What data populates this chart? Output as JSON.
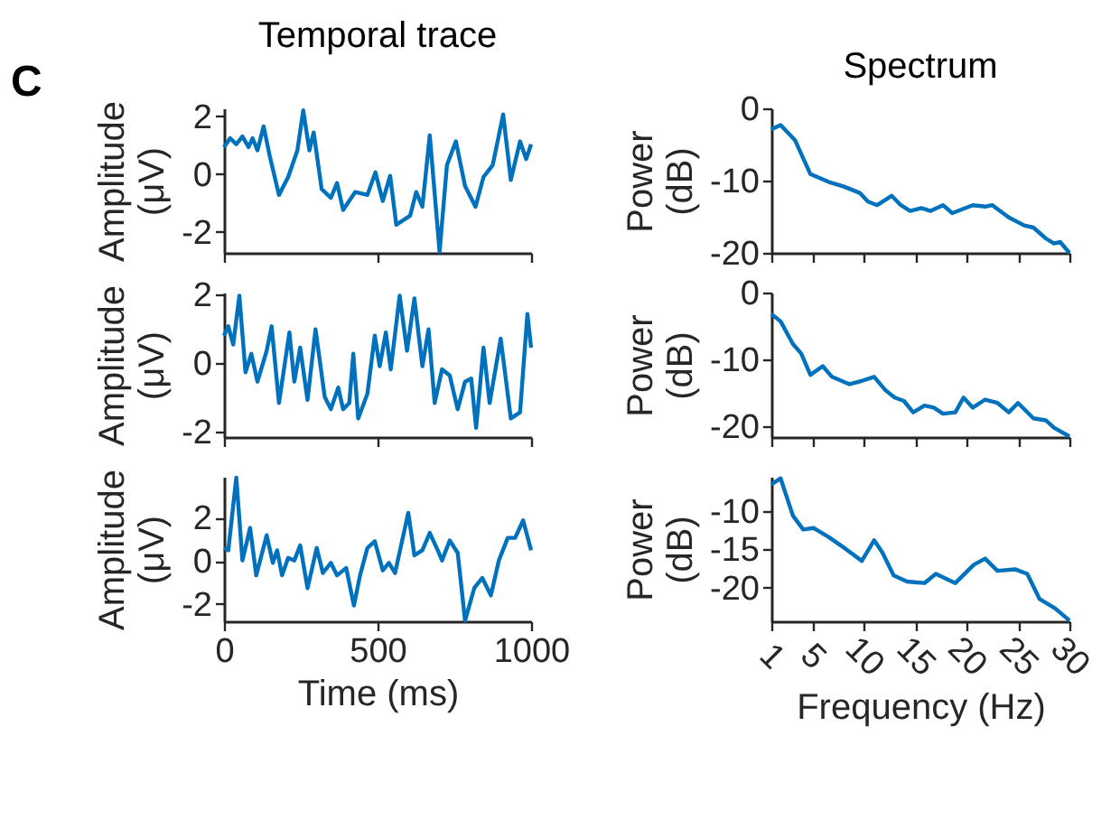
{
  "chart_data": [
    {
      "type": "line",
      "title": "Temporal trace",
      "ylabel": "Amplitude\n(μV)",
      "annotations": [
        "C"
      ],
      "xlim": [
        0,
        1000
      ],
      "xticks": [
        0,
        500,
        1000
      ],
      "ylim": [
        -2.72,
        2.27
      ],
      "yticks": [
        -2,
        0,
        2
      ],
      "tick_labels": "y",
      "grid": false,
      "x": [
        0,
        20,
        40,
        60,
        80,
        93,
        109,
        129,
        149,
        179,
        209,
        239,
        258,
        278,
        292,
        318,
        348,
        368,
        388,
        427,
        467,
        493,
        517,
        541,
        561,
        606,
        626,
        646,
        670,
        702,
        726,
        755,
        785,
        819,
        845,
        875,
        909,
        934,
        964,
        984,
        1000
      ],
      "series": [
        {
          "color": "#0072bd",
          "values": [
            0.93,
            1.24,
            1.03,
            1.3,
            0.93,
            1.24,
            0.82,
            1.65,
            0.62,
            -0.72,
            -0.1,
            0.82,
            2.2,
            0.82,
            1.44,
            -0.52,
            -0.82,
            -0.31,
            -1.24,
            -0.62,
            -0.72,
            0.06,
            -0.93,
            -0.06,
            -1.75,
            -1.44,
            -0.62,
            -1.13,
            1.34,
            -2.68,
            0.31,
            1.13,
            -0.41,
            -1.13,
            -0.1,
            0.31,
            2.06,
            -0.2,
            1.13,
            0.52,
            1.03
          ]
        }
      ]
    },
    {
      "type": "line",
      "title": "Spectrum",
      "ylabel": "Power\n(dB)",
      "xlim": [
        1,
        30
      ],
      "xticks": [
        1,
        5,
        10,
        15,
        20,
        25,
        30
      ],
      "ylim": [
        -20,
        0
      ],
      "yticks": [
        -20,
        -10,
        0
      ],
      "tick_labels": "y",
      "grid": false,
      "x": [
        1,
        1.9,
        3.3,
        4.8,
        6.6,
        8.0,
        9.6,
        10.4,
        11.3,
        12.7,
        13.6,
        14.5,
        15.6,
        16.5,
        17.7,
        18.6,
        20.6,
        21.8,
        22.5,
        24.1,
        25.6,
        26.5,
        27.7,
        28.5,
        29.1,
        30
      ],
      "series": [
        {
          "color": "#0072bd",
          "values": [
            -2.9,
            -2.3,
            -4.4,
            -9.1,
            -10.2,
            -10.8,
            -11.7,
            -12.9,
            -13.4,
            -12.1,
            -13.4,
            -14.2,
            -13.8,
            -14.2,
            -13.4,
            -14.5,
            -13.4,
            -13.6,
            -13.4,
            -15.1,
            -16.2,
            -16.5,
            -18.0,
            -18.7,
            -18.5,
            -20
          ]
        }
      ]
    },
    {
      "type": "line",
      "ylabel": "Amplitude\n(μV)",
      "xlim": [
        0,
        1000
      ],
      "xticks": [
        0,
        500,
        1000
      ],
      "ylim": [
        -2.15,
        2.05
      ],
      "yticks": [
        -2,
        0,
        2
      ],
      "tick_labels": "y",
      "grid": false,
      "x": [
        0,
        14,
        30,
        50,
        70,
        89,
        109,
        139,
        155,
        179,
        213,
        229,
        248,
        272,
        298,
        328,
        348,
        372,
        388,
        408,
        421,
        437,
        467,
        491,
        507,
        527,
        543,
        572,
        596,
        620,
        646,
        666,
        686,
        710,
        735,
        761,
        785,
        805,
        821,
        845,
        865,
        901,
        934,
        964,
        988,
        1000
      ],
      "series": [
        {
          "color": "#0072bd",
          "values": [
            0.8,
            1.07,
            0.54,
            1.96,
            -0.27,
            0.27,
            -0.54,
            0.36,
            1.07,
            -1.16,
            0.89,
            -0.54,
            0.45,
            -1.07,
            0.98,
            -0.98,
            -1.34,
            -0.71,
            -1.34,
            -1.16,
            0.27,
            -1.61,
            -0.89,
            0.8,
            -0.09,
            0.89,
            -0.18,
            1.96,
            0.36,
            1.88,
            -0.09,
            0.98,
            -1.16,
            -0.18,
            -0.36,
            -1.34,
            -0.54,
            -0.45,
            -1.88,
            0.45,
            -1.16,
            0.71,
            -1.61,
            -1.43,
            1.43,
            0.45
          ]
        }
      ]
    },
    {
      "type": "line",
      "ylabel": "Power\n(dB)",
      "xlim": [
        1,
        30
      ],
      "xticks": [
        1,
        5,
        10,
        15,
        20,
        25,
        30
      ],
      "ylim": [
        -21.6,
        0
      ],
      "yticks": [
        -20,
        -10,
        0
      ],
      "tick_labels": "y",
      "grid": false,
      "x": [
        1,
        1.9,
        3.1,
        3.9,
        4.8,
        6.0,
        6.9,
        8.6,
        9.8,
        11.0,
        12.1,
        13.0,
        13.9,
        14.8,
        15.9,
        16.8,
        17.7,
        18.9,
        19.7,
        20.6,
        21.8,
        23.0,
        24.1,
        25.0,
        26.5,
        27.7,
        28.5,
        30
      ],
      "series": [
        {
          "color": "#0072bd",
          "values": [
            -3.2,
            -4.3,
            -7.7,
            -9.1,
            -12.3,
            -11.0,
            -12.6,
            -13.7,
            -13.2,
            -12.6,
            -14.6,
            -15.7,
            -16.2,
            -17.9,
            -16.9,
            -17.2,
            -18.1,
            -17.9,
            -15.7,
            -17.2,
            -16.0,
            -16.5,
            -17.9,
            -16.5,
            -18.8,
            -19.1,
            -20.2,
            -21.5
          ]
        }
      ]
    },
    {
      "type": "line",
      "xlabel": "Time (ms)",
      "ylabel": "Amplitude\n(μV)",
      "xlim": [
        0,
        1000
      ],
      "xticks": [
        0,
        500,
        1000
      ],
      "ylim": [
        -2.8,
        3.9
      ],
      "yticks": [
        -2,
        0,
        2
      ],
      "grid": false,
      "x": [
        0,
        14,
        40,
        60,
        85,
        105,
        139,
        159,
        173,
        189,
        209,
        229,
        248,
        272,
        302,
        322,
        348,
        368,
        398,
        423,
        443,
        467,
        491,
        517,
        537,
        557,
        600,
        620,
        646,
        670,
        696,
        710,
        735,
        761,
        785,
        815,
        841,
        869,
        895,
        924,
        948,
        974,
        1000
      ],
      "series": [
        {
          "color": "#0072bd",
          "values": [
            0.6,
            0.49,
            3.86,
            0.02,
            1.53,
            -0.67,
            1.19,
            -0.09,
            0.49,
            -0.67,
            0.14,
            0.02,
            0.72,
            -1.26,
            0.6,
            -0.56,
            -0.09,
            -0.67,
            -0.33,
            -2.07,
            -0.67,
            0.6,
            0.91,
            -0.44,
            -0.09,
            -0.56,
            2.23,
            0.26,
            0.49,
            1.3,
            0.49,
            0.02,
            0.95,
            0.37,
            -2.77,
            -1.26,
            -0.79,
            -1.6,
            0.02,
            1.07,
            1.07,
            1.88,
            0.49
          ]
        }
      ]
    },
    {
      "type": "line",
      "xlabel": "Frequency (Hz)",
      "ylabel": "Power\n(dB)",
      "xlim": [
        1,
        30
      ],
      "xticks": [
        1,
        5,
        10,
        15,
        20,
        25,
        30
      ],
      "ylim": [
        -24.4,
        -5.5
      ],
      "yticks": [
        -20,
        -15,
        -10
      ],
      "grid": false,
      "x": [
        1,
        1.9,
        3.1,
        4.1,
        5.1,
        6.6,
        8.3,
        9.8,
        11.0,
        11.8,
        12.9,
        14.2,
        15.9,
        17.0,
        18.9,
        20.7,
        21.8,
        23.0,
        24.7,
        25.9,
        27.1,
        28.6,
        30
      ],
      "series": [
        {
          "color": "#0072bd",
          "values": [
            -6.5,
            -5.7,
            -10.6,
            -12.4,
            -12.2,
            -13.4,
            -15.0,
            -16.5,
            -13.8,
            -15.4,
            -18.4,
            -19.2,
            -19.4,
            -18.2,
            -19.4,
            -17.0,
            -16.2,
            -17.8,
            -17.6,
            -18.2,
            -21.5,
            -22.7,
            -24.3
          ]
        }
      ]
    }
  ]
}
